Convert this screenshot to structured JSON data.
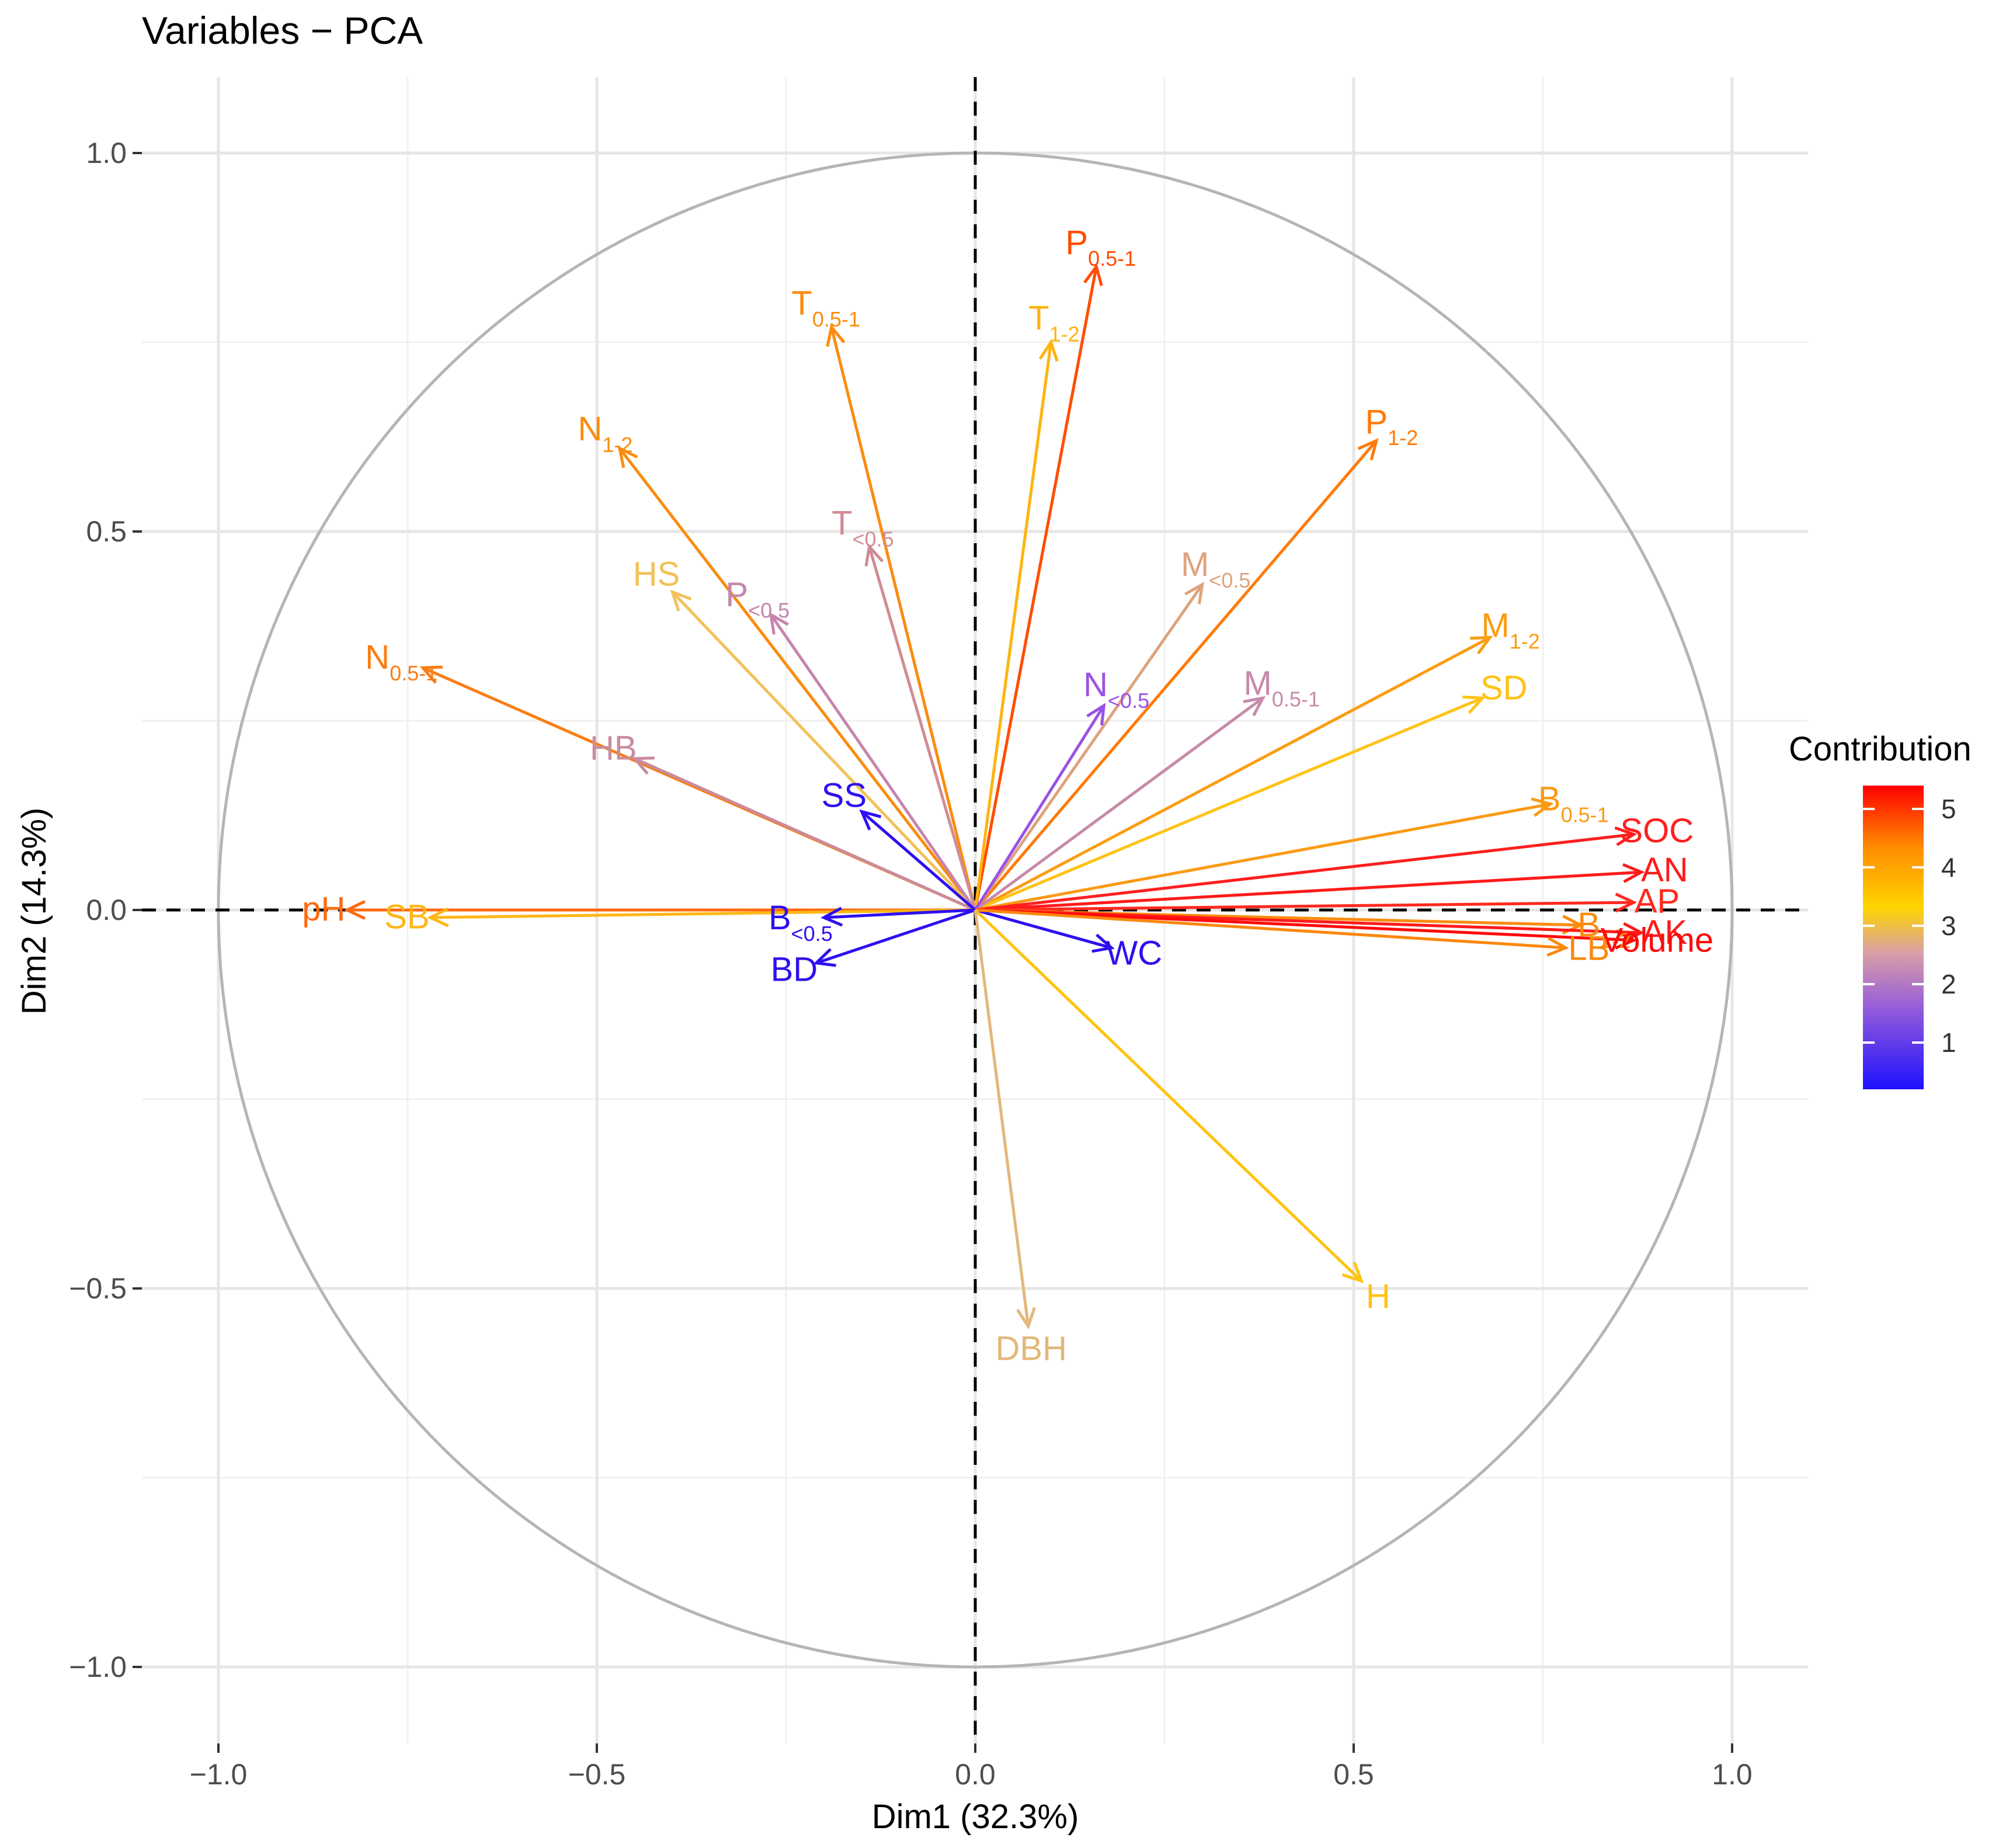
{
  "chart_data": {
    "type": "scatter",
    "subtype": "pca-variable-correlation-circle",
    "title": "Variables − PCA",
    "xlabel": "Dim1 (32.3%)",
    "ylabel": "Dim2 (14.3%)",
    "xlim": [
      -1.1,
      1.1
    ],
    "ylim": [
      -1.1,
      1.1
    ],
    "x_ticks": [
      -1.0,
      -0.5,
      0.0,
      0.5,
      1.0
    ],
    "y_ticks": [
      -1.0,
      -0.5,
      0.0,
      0.5,
      1.0
    ],
    "x_tick_labels": [
      "−1.0",
      "−0.5",
      "0.0",
      "0.5",
      "1.0"
    ],
    "y_tick_labels": [
      "−1.0",
      "−0.5",
      "0.0",
      "0.5",
      "1.0"
    ],
    "grid": true,
    "unit_circle": true,
    "reference_lines": "dashed lines at x = 0 and y = 0",
    "legend": {
      "title": "Contribution",
      "placement": "right",
      "min": 0.2,
      "max": 5.4,
      "ticks": [
        1,
        2,
        3,
        4,
        5
      ],
      "tick_labels": [
        "1",
        "2",
        "3",
        "4",
        "5"
      ],
      "colors": [
        "#1e10ff",
        "#c989b6",
        "#ffd500",
        "#ff8a00",
        "#ff0000"
      ]
    },
    "variables": [
      {
        "name": "P",
        "sub": "0.5-1",
        "x": 0.16,
        "y": 0.85,
        "contrib": 4.7,
        "color": "#ff4d00"
      },
      {
        "name": "T",
        "sub": "0.5-1",
        "x": -0.19,
        "y": 0.77,
        "contrib": 4.0,
        "color": "#fb8c0f"
      },
      {
        "name": "T",
        "sub": "1-2",
        "x": 0.1,
        "y": 0.75,
        "contrib": 3.3,
        "color": "#ffb30f"
      },
      {
        "name": "P",
        "sub": "1-2",
        "x": 0.53,
        "y": 0.62,
        "contrib": 4.2,
        "color": "#ff7a0a"
      },
      {
        "name": "N",
        "sub": "1-2",
        "x": -0.47,
        "y": 0.61,
        "contrib": 3.9,
        "color": "#fb8c0f"
      },
      {
        "name": "T",
        "sub": "<0.5",
        "x": -0.14,
        "y": 0.48,
        "contrib": 1.8,
        "color": "#d08c94"
      },
      {
        "name": "HS",
        "sub": "",
        "x": -0.4,
        "y": 0.42,
        "contrib": 2.5,
        "color": "#f2c158"
      },
      {
        "name": "M",
        "sub": "<0.5",
        "x": 0.3,
        "y": 0.43,
        "contrib": 2.2,
        "color": "#dea37d"
      },
      {
        "name": "P",
        "sub": "<0.5",
        "x": -0.27,
        "y": 0.39,
        "contrib": 1.4,
        "color": "#c585ad"
      },
      {
        "name": "M",
        "sub": "1-2",
        "x": 0.68,
        "y": 0.36,
        "contrib": 3.7,
        "color": "#fb9c12"
      },
      {
        "name": "N",
        "sub": "0.5-1",
        "x": -0.73,
        "y": 0.32,
        "contrib": 4.1,
        "color": "#f97e14"
      },
      {
        "name": "SD",
        "sub": "",
        "x": 0.67,
        "y": 0.28,
        "contrib": 3.2,
        "color": "#ffc315"
      },
      {
        "name": "M",
        "sub": "0.5-1",
        "x": 0.38,
        "y": 0.28,
        "contrib": 1.6,
        "color": "#c78aaa"
      },
      {
        "name": "N",
        "sub": "<0.5",
        "x": 0.17,
        "y": 0.27,
        "contrib": 0.9,
        "color": "#9a52e6"
      },
      {
        "name": "HB",
        "sub": "",
        "x": -0.45,
        "y": 0.2,
        "contrib": 1.6,
        "color": "#c98c9c"
      },
      {
        "name": "B",
        "sub": "0.5-1",
        "x": 0.76,
        "y": 0.14,
        "contrib": 3.6,
        "color": "#fb9a14"
      },
      {
        "name": "SS",
        "sub": "",
        "x": -0.15,
        "y": 0.13,
        "contrib": 0.3,
        "color": "#2d10f0"
      },
      {
        "name": "SOC",
        "sub": "",
        "x": 0.87,
        "y": 0.1,
        "contrib": 5.2,
        "color": "#ff1f1f"
      },
      {
        "name": "AN",
        "sub": "",
        "x": 0.88,
        "y": 0.05,
        "contrib": 5.3,
        "color": "#ff1a1a"
      },
      {
        "name": "AP",
        "sub": "",
        "x": 0.87,
        "y": 0.01,
        "contrib": 5.1,
        "color": "#ff2a1f"
      },
      {
        "name": "pH",
        "sub": "",
        "x": -0.83,
        "y": 0.0,
        "contrib": 4.4,
        "color": "#fd6a0f"
      },
      {
        "name": "SB",
        "sub": "",
        "x": -0.72,
        "y": -0.01,
        "contrib": 3.4,
        "color": "#ffb616"
      },
      {
        "name": "B",
        "sub": "<0.5",
        "x": -0.2,
        "y": -0.01,
        "contrib": 0.3,
        "color": "#2d10f0"
      },
      {
        "name": "B",
        "sub": "1-2",
        "x": 0.8,
        "y": -0.02,
        "contrib": 3.9,
        "color": "#fb8c0f"
      },
      {
        "name": "AK",
        "sub": "",
        "x": 0.88,
        "y": -0.03,
        "contrib": 5.3,
        "color": "#ff1a1a"
      },
      {
        "name": "Volume",
        "sub": "",
        "x": 0.87,
        "y": -0.04,
        "contrib": 5.4,
        "color": "#ff0a0a"
      },
      {
        "name": "WC",
        "sub": "",
        "x": 0.18,
        "y": -0.05,
        "contrib": 0.3,
        "color": "#2d10f0"
      },
      {
        "name": "LB",
        "sub": "",
        "x": 0.78,
        "y": -0.05,
        "contrib": 4.0,
        "color": "#fb880f"
      },
      {
        "name": "BD",
        "sub": "",
        "x": -0.21,
        "y": -0.07,
        "contrib": 0.3,
        "color": "#2d10f0"
      },
      {
        "name": "H",
        "sub": "",
        "x": 0.51,
        "y": -0.49,
        "contrib": 3.2,
        "color": "#ffc30f"
      },
      {
        "name": "DBH",
        "sub": "",
        "x": 0.07,
        "y": -0.55,
        "contrib": 2.2,
        "color": "#e2b87a"
      }
    ]
  }
}
